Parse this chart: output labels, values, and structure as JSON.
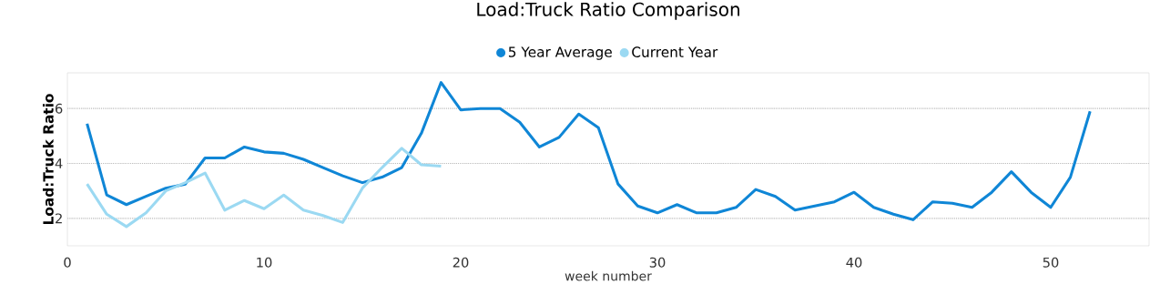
{
  "chart_data": {
    "type": "line",
    "title": "Load:Truck Ratio Comparison",
    "xlabel": "week number",
    "ylabel": "Load:Truck Ratio",
    "xlim": [
      0,
      55
    ],
    "xticks": [
      0,
      10,
      20,
      30,
      40,
      50
    ],
    "ylim": [
      1,
      7.3
    ],
    "yticks": [
      2,
      4,
      6
    ],
    "grid": "y",
    "legend": "top",
    "marker": "none",
    "line_style": "solid",
    "series": [
      {
        "name": "5 Year Average",
        "color": "#0f86d6",
        "x": [
          1,
          2,
          3,
          4,
          5,
          6,
          7,
          8,
          9,
          10,
          11,
          12,
          13,
          14,
          15,
          16,
          17,
          18,
          19,
          20,
          21,
          22,
          23,
          24,
          25,
          26,
          27,
          28,
          29,
          30,
          31,
          32,
          33,
          34,
          35,
          36,
          37,
          38,
          39,
          40,
          41,
          42,
          43,
          44,
          45,
          46,
          47,
          48,
          49,
          50,
          51,
          52
        ],
        "values": [
          5.45,
          2.85,
          2.5,
          2.8,
          3.1,
          3.25,
          4.2,
          4.2,
          4.6,
          4.42,
          4.37,
          4.15,
          3.85,
          3.55,
          3.3,
          3.5,
          3.85,
          5.1,
          6.95,
          5.95,
          6.0,
          6.0,
          5.5,
          4.6,
          4.95,
          5.8,
          5.3,
          3.25,
          2.45,
          2.2,
          2.5,
          2.2,
          2.2,
          2.4,
          3.05,
          2.8,
          2.3,
          2.45,
          2.6,
          2.95,
          2.4,
          2.15,
          1.95,
          2.6,
          2.55,
          2.4,
          2.95,
          3.7,
          2.95,
          2.4,
          3.5,
          5.9
        ]
      },
      {
        "name": "Current Year",
        "color": "#9bd9f2",
        "x": [
          1,
          2,
          3,
          4,
          5,
          6,
          7,
          8,
          9,
          10,
          11,
          12,
          13,
          14,
          15,
          16,
          17,
          18,
          19
        ],
        "values": [
          3.25,
          2.15,
          1.7,
          2.2,
          3.0,
          3.3,
          3.65,
          2.3,
          2.65,
          2.35,
          2.85,
          2.3,
          2.1,
          1.85,
          3.1,
          3.85,
          4.55,
          3.95,
          3.9
        ]
      }
    ]
  }
}
